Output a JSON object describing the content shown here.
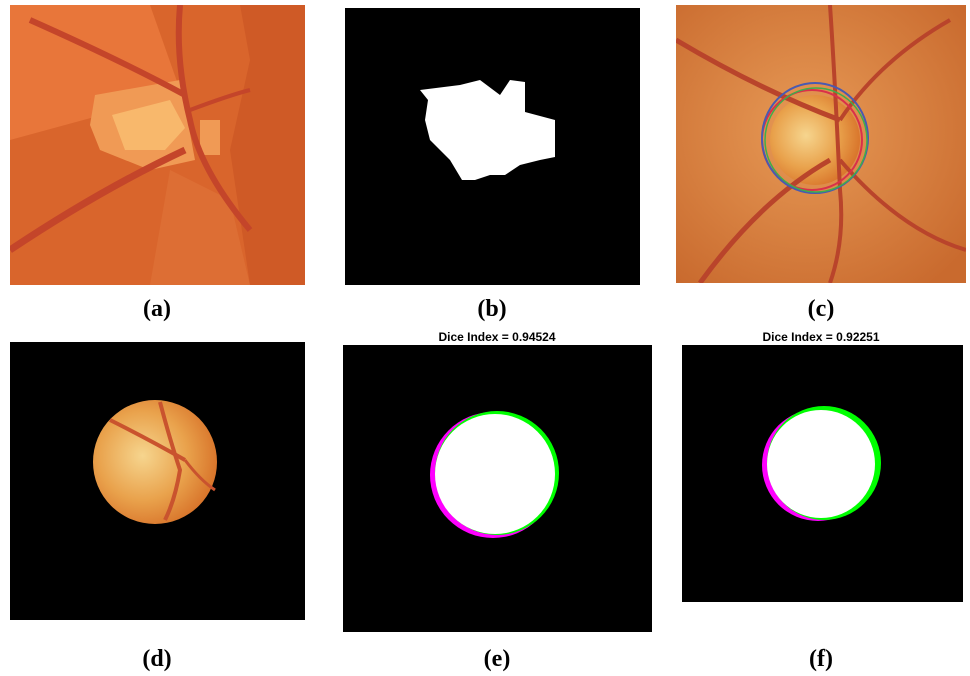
{
  "panels": [
    {
      "label": "(a)"
    },
    {
      "label": "(b)"
    },
    {
      "label": "(c)"
    },
    {
      "label": "(d)"
    },
    {
      "title": "Dice Index = 0.94524",
      "label": "(e)"
    },
    {
      "title": "Dice Index = 0.92251",
      "label": "(f)"
    }
  ]
}
